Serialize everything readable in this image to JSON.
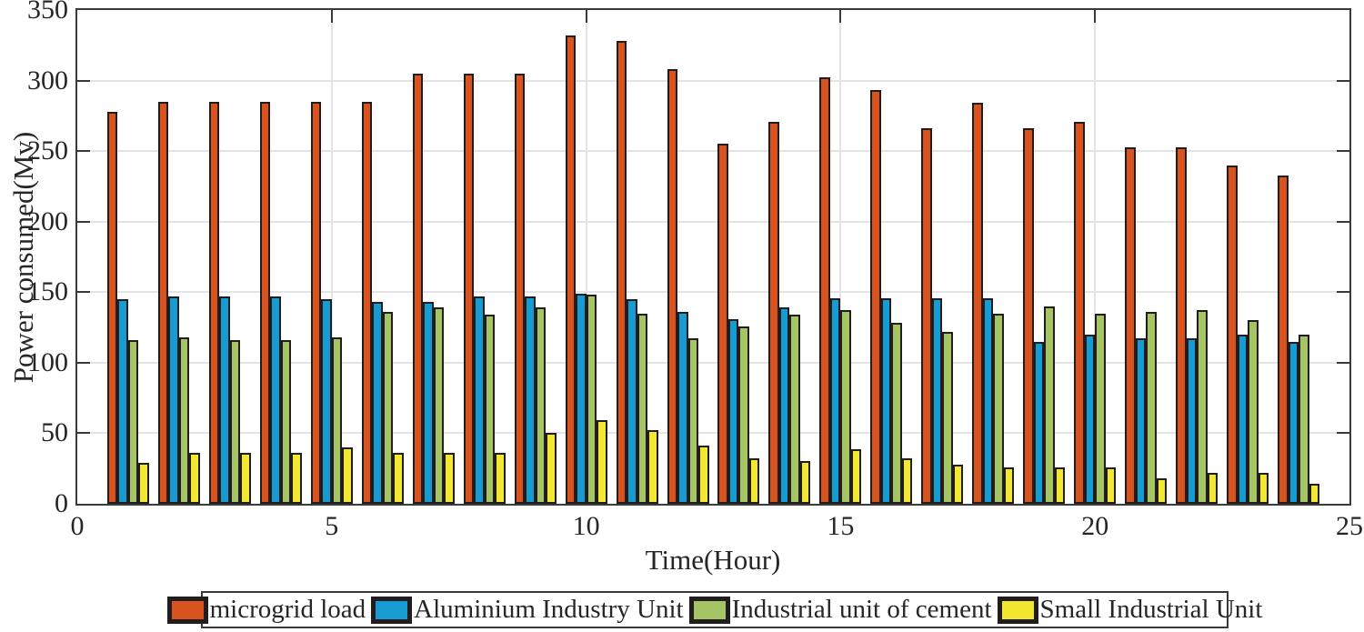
{
  "chart_data": {
    "type": "bar",
    "title": "",
    "xlabel": "Time(Hour)",
    "ylabel": "Power consumed(Mv)",
    "xlim": [
      0,
      25
    ],
    "ylim": [
      0,
      350
    ],
    "x_ticks": [
      0,
      5,
      10,
      15,
      20,
      25
    ],
    "y_ticks": [
      0,
      50,
      100,
      150,
      200,
      250,
      300,
      350
    ],
    "grid": true,
    "legend_position": "below-chart",
    "bar_border_color": "#211d1e",
    "categories": [
      1,
      2,
      3,
      4,
      5,
      6,
      7,
      8,
      9,
      10,
      11,
      12,
      13,
      14,
      15,
      16,
      17,
      18,
      19,
      20,
      21,
      22,
      23,
      24
    ],
    "series": [
      {
        "name": "microgrid load",
        "color": "#d9531e",
        "values": [
          278,
          285,
          285,
          285,
          285,
          285,
          305,
          305,
          305,
          332,
          328,
          308,
          255,
          271,
          302,
          293,
          266,
          284,
          266,
          271,
          253,
          253,
          240,
          233
        ]
      },
      {
        "name": "Aluminium Industry Unit",
        "color": "#149cd3",
        "values": [
          145,
          147,
          147,
          147,
          145,
          143,
          143,
          147,
          147,
          149,
          145,
          136,
          131,
          139,
          146,
          146,
          146,
          146,
          115,
          120,
          117,
          117,
          120,
          115
        ]
      },
      {
        "name": "Industrial unit of cement",
        "color": "#a4c465",
        "values": [
          116,
          118,
          116,
          116,
          118,
          136,
          139,
          134,
          139,
          148,
          135,
          117,
          126,
          134,
          137,
          128,
          122,
          135,
          140,
          135,
          136,
          137,
          130,
          120
        ]
      },
      {
        "name": "Small Industrial Unit",
        "color": "#f2e832",
        "values": [
          29,
          36,
          36,
          36,
          40,
          36,
          36,
          36,
          50,
          59,
          52,
          41,
          32,
          30,
          39,
          32,
          28,
          26,
          26,
          26,
          18,
          22,
          22,
          14
        ]
      }
    ]
  }
}
